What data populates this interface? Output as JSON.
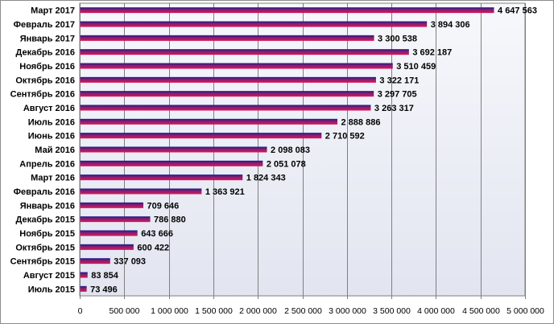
{
  "chart_data": {
    "type": "bar",
    "orientation": "horizontal",
    "categories": [
      "Март 2017",
      "Февраль 2017",
      "Январь 2017",
      "Декабрь 2016",
      "Ноябрь 2016",
      "Октябрь 2016",
      "Сентябрь 2016",
      "Август 2016",
      "Июль 2016",
      "Июнь 2016",
      "Май 2016",
      "Апрель 2016",
      "Март 2016",
      "Февраль 2016",
      "Январь 2016",
      "Декабрь 2015",
      "Ноябрь 2015",
      "Октябрь 2015",
      "Сентябрь 2015",
      "Август 2015",
      "Июль 2015"
    ],
    "values": [
      4647563,
      3894306,
      3300538,
      3692187,
      3510459,
      3322171,
      3297705,
      3263317,
      2888886,
      2710592,
      2098083,
      2051078,
      1824343,
      1363921,
      709646,
      786880,
      643666,
      600422,
      337093,
      83854,
      73496
    ],
    "value_labels": [
      "4 647 563",
      "3 894 306",
      "3 300 538",
      "3 692 187",
      "3 510 459",
      "3 322 171",
      "3 297 705",
      "3 263 317",
      "2 888 886",
      "2 710 592",
      "2 098 083",
      "2 051 078",
      "1 824 343",
      "1 363 921",
      "709 646",
      "786 880",
      "643 666",
      "600 422",
      "337 093",
      "83 854",
      "73 496"
    ],
    "xlim": [
      0,
      5000000
    ],
    "xticks": [
      0,
      500000,
      1000000,
      1500000,
      2000000,
      2500000,
      3000000,
      3500000,
      4000000,
      4500000,
      5000000
    ],
    "xtick_labels": [
      "0",
      "500 000",
      "1 000 000",
      "1 500 000",
      "2 000 000",
      "2 500 000",
      "3 000 000",
      "3 500 000",
      "4 000 000",
      "4 500 000",
      "5 000 000"
    ],
    "grid": true,
    "legend": "none",
    "title": "",
    "xlabel": "",
    "ylabel": ""
  },
  "colors": {
    "bar_top": "#1a1a8c",
    "bar_mid": "#8a1f6e",
    "bar_bottom": "#e0125a",
    "plot_bg_top": "#f7f8fc",
    "plot_bg_bottom": "#e2e5f0",
    "grid": "#7f7f7f"
  }
}
